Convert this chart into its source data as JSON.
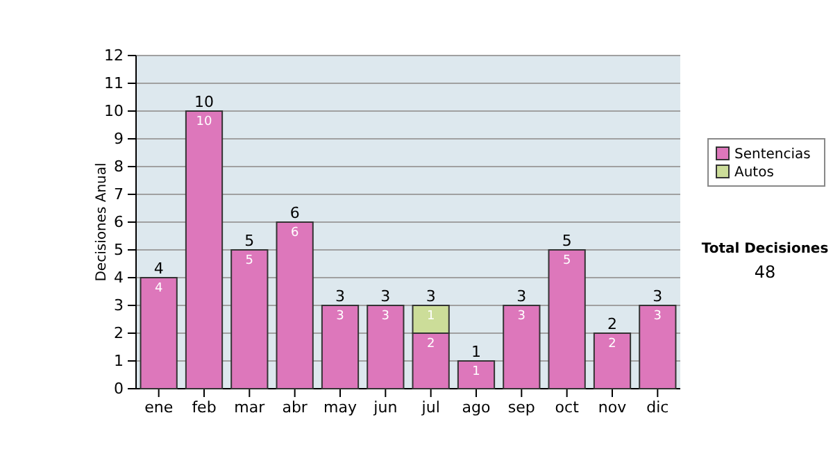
{
  "chart_data": {
    "type": "bar",
    "ylabel": "Decisiones Anual",
    "categories": [
      "ene",
      "feb",
      "mar",
      "abr",
      "may",
      "jun",
      "jul",
      "ago",
      "sep",
      "oct",
      "nov",
      "dic"
    ],
    "series": [
      {
        "name": "Sentencias",
        "color": "#dd77bb",
        "values": [
          4,
          10,
          5,
          6,
          3,
          3,
          2,
          1,
          3,
          5,
          2,
          3
        ]
      },
      {
        "name": "Autos",
        "color": "#ccdd99",
        "values": [
          null,
          null,
          null,
          null,
          null,
          null,
          1,
          null,
          null,
          null,
          null,
          null
        ]
      }
    ],
    "stacked": true,
    "data_labels": true,
    "totals": [
      "4",
      "10",
      "5",
      "6",
      "3",
      "3",
      "3",
      "1",
      "3",
      "5",
      "2",
      "3"
    ],
    "ylim": [
      0,
      12
    ],
    "yticks": [
      0,
      1,
      2,
      3,
      4,
      5,
      6,
      7,
      8,
      9,
      10,
      11,
      12
    ],
    "grid": "y",
    "legend": "right",
    "annotations": [
      "Total Decisiones",
      "48"
    ]
  }
}
